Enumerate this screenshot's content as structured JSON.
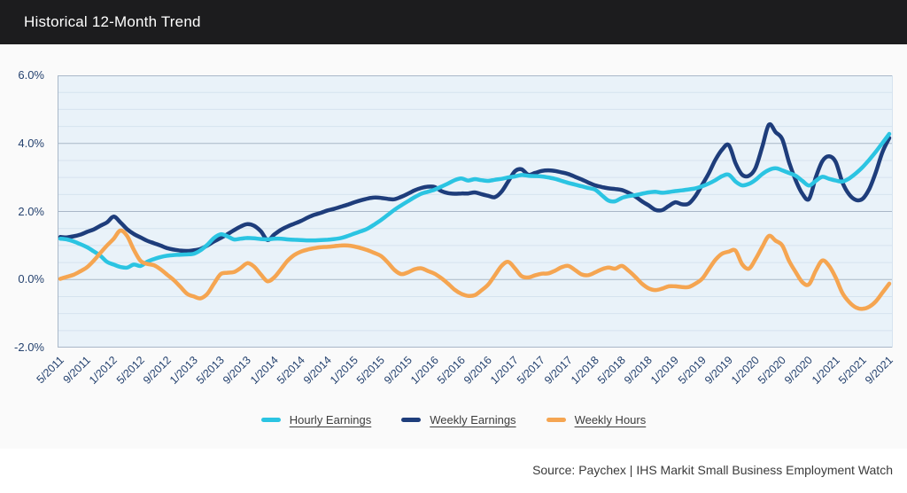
{
  "header": {
    "title": "Historical 12-Month Trend"
  },
  "source": {
    "text": "Source: Paychex | IHS Markit Small Business Employment Watch"
  },
  "colors": {
    "titlebar_bg": "#1c1c1e",
    "plot_bg": "#e9f2f9",
    "grid_major": "#a9b7c8",
    "grid_minor": "#d6e3ef",
    "axis_text": "#25426f",
    "hourly_earnings": "#2bc4e2",
    "weekly_earnings": "#1e3d7b",
    "weekly_hours": "#f5a551"
  },
  "chart_data": {
    "type": "line",
    "title": "Historical 12-Month Trend",
    "ylim": [
      -2,
      6
    ],
    "grid": "horizontal-major-and-minor",
    "minor_grid_step": 0.5,
    "legend_position": "bottom",
    "y_ticks": [
      {
        "value": 6,
        "label": "6.0%"
      },
      {
        "value": 4,
        "label": "4.0%"
      },
      {
        "value": 2,
        "label": "2.0%"
      },
      {
        "value": 0,
        "label": "0.0%"
      },
      {
        "value": -2,
        "label": "-2.0%"
      }
    ],
    "x_unit": "month",
    "months_per_tick": 4,
    "x_tick_labels": [
      "5/2011",
      "9/2011",
      "1/2012",
      "5/2012",
      "9/2012",
      "1/2013",
      "5/2013",
      "9/2013",
      "1/2014",
      "5/2014",
      "9/2014",
      "1/2015",
      "5/2015",
      "9/2015",
      "1/2016",
      "5/2016",
      "9/2016",
      "1/2017",
      "5/2017",
      "9/2017",
      "1/2018",
      "5/2018",
      "9/2018",
      "1/2019",
      "5/2019",
      "9/2019",
      "1/2020",
      "5/2020",
      "9/2020",
      "1/2021",
      "5/2021",
      "9/2021"
    ],
    "series": [
      {
        "name": "Hourly Earnings",
        "color": "#2bc4e2",
        "values": [
          1.2,
          1.18,
          1.12,
          1.04,
          0.95,
          0.83,
          0.7,
          0.52,
          0.44,
          0.37,
          0.35,
          0.44,
          0.4,
          0.52,
          0.6,
          0.66,
          0.7,
          0.72,
          0.73,
          0.74,
          0.76,
          0.86,
          1.02,
          1.22,
          1.33,
          1.27,
          1.18,
          1.2,
          1.22,
          1.21,
          1.19,
          1.18,
          1.2,
          1.2,
          1.18,
          1.17,
          1.16,
          1.15,
          1.15,
          1.16,
          1.17,
          1.19,
          1.22,
          1.28,
          1.35,
          1.42,
          1.5,
          1.62,
          1.75,
          1.9,
          2.05,
          2.18,
          2.3,
          2.42,
          2.52,
          2.58,
          2.64,
          2.73,
          2.82,
          2.92,
          2.97,
          2.91,
          2.95,
          2.92,
          2.9,
          2.93,
          2.96,
          3.0,
          3.03,
          3.07,
          3.05,
          3.04,
          3.03,
          3.0,
          2.96,
          2.9,
          2.84,
          2.79,
          2.74,
          2.69,
          2.64,
          2.48,
          2.32,
          2.3,
          2.4,
          2.45,
          2.48,
          2.52,
          2.56,
          2.58,
          2.55,
          2.57,
          2.6,
          2.62,
          2.65,
          2.68,
          2.74,
          2.82,
          2.92,
          3.04,
          3.08,
          2.88,
          2.77,
          2.81,
          2.93,
          3.1,
          3.22,
          3.27,
          3.21,
          3.13,
          3.05,
          2.9,
          2.76,
          2.9,
          3.02,
          2.96,
          2.91,
          2.88,
          2.97,
          3.12,
          3.3,
          3.52,
          3.76,
          4.02,
          4.28
        ]
      },
      {
        "name": "Weekly Earnings",
        "color": "#1e3d7b",
        "values": [
          1.25,
          1.24,
          1.27,
          1.32,
          1.4,
          1.47,
          1.58,
          1.68,
          1.85,
          1.68,
          1.48,
          1.34,
          1.24,
          1.14,
          1.07,
          1.0,
          0.92,
          0.88,
          0.85,
          0.84,
          0.86,
          0.9,
          1.0,
          1.12,
          1.22,
          1.33,
          1.45,
          1.56,
          1.63,
          1.58,
          1.42,
          1.16,
          1.32,
          1.46,
          1.56,
          1.64,
          1.72,
          1.82,
          1.9,
          1.96,
          2.03,
          2.08,
          2.14,
          2.2,
          2.27,
          2.33,
          2.38,
          2.41,
          2.4,
          2.37,
          2.36,
          2.43,
          2.52,
          2.62,
          2.69,
          2.73,
          2.72,
          2.6,
          2.54,
          2.52,
          2.53,
          2.53,
          2.56,
          2.51,
          2.46,
          2.42,
          2.58,
          2.88,
          3.18,
          3.24,
          3.08,
          3.13,
          3.19,
          3.21,
          3.19,
          3.15,
          3.1,
          3.02,
          2.94,
          2.85,
          2.77,
          2.72,
          2.68,
          2.66,
          2.63,
          2.55,
          2.44,
          2.3,
          2.18,
          2.05,
          2.04,
          2.16,
          2.27,
          2.21,
          2.23,
          2.45,
          2.78,
          3.12,
          3.52,
          3.82,
          3.95,
          3.42,
          3.08,
          3.05,
          3.28,
          3.9,
          4.55,
          4.33,
          4.12,
          3.45,
          2.92,
          2.52,
          2.37,
          3.0,
          3.48,
          3.62,
          3.45,
          2.85,
          2.5,
          2.34,
          2.37,
          2.66,
          3.16,
          3.76,
          4.16
        ]
      },
      {
        "name": "Weekly Hours",
        "color": "#f5a551",
        "values": [
          0.02,
          0.08,
          0.14,
          0.24,
          0.36,
          0.55,
          0.78,
          1.0,
          1.2,
          1.44,
          1.28,
          0.88,
          0.55,
          0.46,
          0.42,
          0.3,
          0.14,
          -0.02,
          -0.22,
          -0.42,
          -0.5,
          -0.55,
          -0.42,
          -0.12,
          0.16,
          0.2,
          0.22,
          0.34,
          0.48,
          0.38,
          0.15,
          -0.05,
          0.06,
          0.3,
          0.55,
          0.72,
          0.82,
          0.88,
          0.92,
          0.95,
          0.96,
          0.98,
          1.0,
          1.0,
          0.97,
          0.92,
          0.86,
          0.78,
          0.69,
          0.5,
          0.28,
          0.16,
          0.21,
          0.3,
          0.33,
          0.25,
          0.17,
          0.04,
          -0.12,
          -0.3,
          -0.42,
          -0.48,
          -0.46,
          -0.32,
          -0.15,
          0.12,
          0.4,
          0.52,
          0.33,
          0.1,
          0.06,
          0.12,
          0.17,
          0.18,
          0.26,
          0.36,
          0.4,
          0.28,
          0.15,
          0.13,
          0.21,
          0.3,
          0.35,
          0.32,
          0.4,
          0.26,
          0.08,
          -0.12,
          -0.26,
          -0.31,
          -0.27,
          -0.2,
          -0.2,
          -0.22,
          -0.22,
          -0.12,
          0.02,
          0.3,
          0.58,
          0.76,
          0.82,
          0.85,
          0.45,
          0.32,
          0.6,
          0.96,
          1.28,
          1.14,
          1.0,
          0.55,
          0.22,
          -0.08,
          -0.14,
          0.26,
          0.56,
          0.4,
          0.05,
          -0.4,
          -0.66,
          -0.82,
          -0.86,
          -0.8,
          -0.64,
          -0.38,
          -0.12
        ]
      }
    ]
  }
}
